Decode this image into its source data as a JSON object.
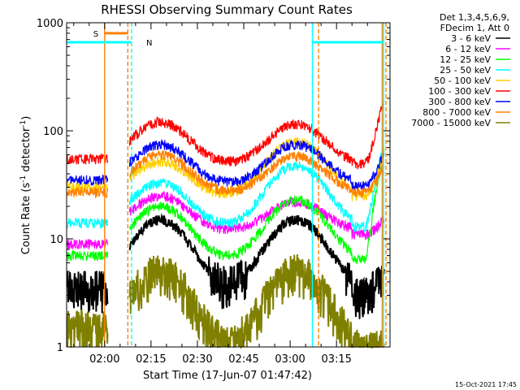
{
  "chart_data": {
    "type": "line",
    "title": "RHESSI Observing Summary Count Rates",
    "xlabel": "Start Time (17-Jun-07 01:47:42)",
    "ylabel_main": "Count Rate (s",
    "ylabel_sup1": "-1",
    "ylabel_mid": " detector",
    "ylabel_sup2": "-1",
    "ylabel_end": ")",
    "yscale": "log",
    "ylim": [
      1,
      1000
    ],
    "xlim_minutes": [
      -12.3,
      92.3
    ],
    "x_ticks": [
      {
        "min": 0,
        "label": "02:00"
      },
      {
        "min": 15,
        "label": "02:15"
      },
      {
        "min": 30,
        "label": "02:30"
      },
      {
        "min": 45,
        "label": "02:45"
      },
      {
        "min": 60,
        "label": "03:00"
      },
      {
        "min": 75,
        "label": "03:15"
      }
    ],
    "y_ticks": [
      {
        "v": 1,
        "label": "1"
      },
      {
        "v": 10,
        "label": "10"
      },
      {
        "v": 100,
        "label": "100"
      },
      {
        "v": 1000,
        "label": "1000"
      }
    ],
    "legend_header_1": "Det 1,3,4,5,6,9,",
    "legend_header_2": "FDecim 1, Att 0",
    "series": [
      {
        "name": "3 - 6 keV",
        "color": "#000000",
        "pre": 3.5,
        "hump1": 15,
        "valley": 3.5,
        "hump2": 15,
        "late": 3.2,
        "end": 5
      },
      {
        "name": "6 - 12 keV",
        "color": "#ff00ff",
        "pre": 9,
        "hump1": 25,
        "valley": 12,
        "hump2": 22,
        "late": 11,
        "end": 15
      },
      {
        "name": "12 - 25 keV",
        "color": "#00ff00",
        "pre": 7,
        "hump1": 20,
        "valley": 6.5,
        "hump2": 23,
        "late": 6.5,
        "end": 60
      },
      {
        "name": "25 - 50 keV",
        "color": "#00ffff",
        "pre": 14,
        "hump1": 33,
        "valley": 13,
        "hump2": 48,
        "late": 13,
        "end": 70
      },
      {
        "name": "50 - 100 keV",
        "color": "#ffd000",
        "pre": 30,
        "hump1": 52,
        "valley": 25,
        "hump2": 80,
        "late": 25,
        "end": 55
      },
      {
        "name": "100 - 300 keV",
        "color": "#ff0000",
        "pre": 55,
        "hump1": 120,
        "valley": 50,
        "hump2": 115,
        "late": 50,
        "end": 180
      },
      {
        "name": "300 - 800 keV",
        "color": "#0000ff",
        "pre": 35,
        "hump1": 75,
        "valley": 32,
        "hump2": 75,
        "late": 31,
        "end": 60
      },
      {
        "name": "800 - 7000 keV",
        "color": "#ff8000",
        "pre": 27,
        "hump1": 60,
        "valley": 27,
        "hump2": 58,
        "late": 27,
        "end": 45
      },
      {
        "name": "7000 - 15000 keV",
        "color": "#808000",
        "pre": 1.5,
        "hump1": 5,
        "valley": 1.0,
        "hump2": 5,
        "late": 1.0,
        "end": 1
      }
    ],
    "data_gap_minutes": [
      1,
      8
    ],
    "markers": [
      {
        "label": "S",
        "color": "#ff8000",
        "start_min": 0,
        "end_min": 7.5,
        "level": 800
      },
      {
        "label": "N",
        "color": "#00ffff",
        "start_min": -12.3,
        "end_min": 8.7,
        "level": 660
      },
      {
        "label": "",
        "color": "#00ffff",
        "start_min": 67.2,
        "end_min": 90.2,
        "level": 660
      }
    ],
    "vlines": [
      {
        "min": 0,
        "color": "#ff8000",
        "style": "solid"
      },
      {
        "min": 7.5,
        "color": "#ff8000",
        "style": "dashed"
      },
      {
        "min": 8.7,
        "color": "#00ffff",
        "style": "dashed"
      },
      {
        "min": 67.2,
        "color": "#00ffff",
        "style": "solid"
      },
      {
        "min": 69.2,
        "color": "#ff8000",
        "style": "dashed"
      },
      {
        "min": 89.8,
        "color": "#ff8000",
        "style": "solid"
      },
      {
        "min": 90.2,
        "color": "#00ffff",
        "style": "solid"
      },
      {
        "min": 91.0,
        "color": "#ff8000",
        "style": "dashed"
      }
    ]
  },
  "footer_timestamp": "15-Oct-2021 17:45"
}
